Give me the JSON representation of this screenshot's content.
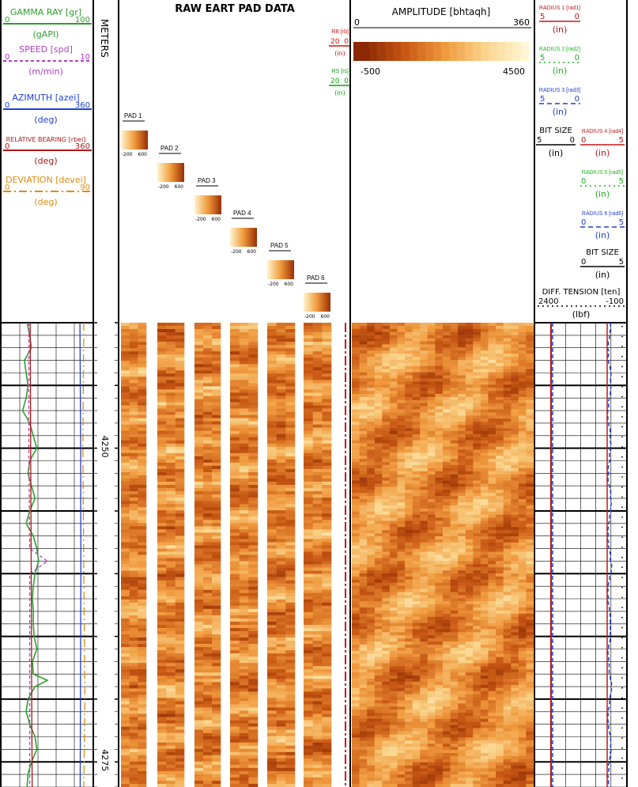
{
  "chart_data": {
    "type": "well-log",
    "title": "RAW EART PAD DATA",
    "depth": {
      "unit": "METERS",
      "range": [
        4240,
        4277
      ],
      "tick_labels": [
        "4250",
        "4275"
      ]
    },
    "left_track": {
      "curves": [
        {
          "key": "gr",
          "name": "GAMMA RAY [gr]",
          "unit": "(gAPI)",
          "min": "0",
          "max": "100",
          "color": "#2ca02c",
          "dash": "none",
          "samples": [
            [
              4240,
              27
            ],
            [
              4241,
              30
            ],
            [
              4242,
              32
            ],
            [
              4243,
              24
            ],
            [
              4244,
              26
            ],
            [
              4245,
              28
            ],
            [
              4246,
              26
            ],
            [
              4247,
              22
            ],
            [
              4248,
              30
            ],
            [
              4249,
              34
            ],
            [
              4250,
              38
            ],
            [
              4251,
              30
            ],
            [
              4252,
              28
            ],
            [
              4253,
              32
            ],
            [
              4254,
              36
            ],
            [
              4255,
              30
            ],
            [
              4256,
              26
            ],
            [
              4257,
              34
            ],
            [
              4258,
              38
            ],
            [
              4259,
              40
            ],
            [
              4260,
              36
            ],
            [
              4261,
              34
            ],
            [
              4262,
              33
            ],
            [
              4263,
              34
            ],
            [
              4264,
              34
            ],
            [
              4265,
              35
            ],
            [
              4266,
              38
            ],
            [
              4267,
              33
            ],
            [
              4268,
              34
            ],
            [
              4268.5,
              50
            ],
            [
              4269,
              36
            ],
            [
              4270,
              28
            ],
            [
              4271,
              26
            ],
            [
              4272,
              30
            ],
            [
              4273,
              36
            ],
            [
              4274,
              38
            ],
            [
              4275,
              32
            ],
            [
              4276,
              28
            ],
            [
              4277,
              27
            ]
          ]
        },
        {
          "key": "spd",
          "name": "SPEED [spd]",
          "unit": "(m/min)",
          "min": "0",
          "max": "10",
          "color": "#b040c0",
          "dash": "4,3",
          "samples": [
            [
              4240,
              2.9
            ],
            [
              4250,
              2.9
            ],
            [
              4258,
              3.0
            ],
            [
              4259,
              5.0
            ],
            [
              4259.5,
              4.0
            ],
            [
              4260,
              3.0
            ],
            [
              4277,
              3.0
            ]
          ]
        },
        {
          "key": "azei",
          "name": "AZIMUTH [azei]",
          "unit": "(deg)",
          "min": "0",
          "max": "360",
          "color": "#1f3fd0",
          "dash": "none",
          "samples": [
            [
              4240,
              312
            ],
            [
              4250,
              315
            ],
            [
              4260,
              316
            ],
            [
              4270,
              314
            ],
            [
              4277,
              313
            ]
          ]
        },
        {
          "key": "rbei",
          "name": "RELATIVE BEARING [rbei]",
          "unit": "(deg)",
          "min": "0",
          "max": "360",
          "color": "#b01818",
          "dash": "none",
          "samples": [
            [
              4240,
              110
            ],
            [
              4250,
              112
            ],
            [
              4260,
              114
            ],
            [
              4270,
              116
            ],
            [
              4277,
              118
            ]
          ]
        },
        {
          "key": "devei",
          "name": "DEVIATION [devei]",
          "unit": "(deg)",
          "min": "0",
          "max": "90",
          "color": "#e08a10",
          "dash": "10,4,2,4",
          "samples": [
            [
              4240,
              82
            ],
            [
              4250,
              81
            ],
            [
              4260,
              82
            ],
            [
              4270,
              83
            ],
            [
              4277,
              82
            ]
          ]
        }
      ]
    },
    "pads": [
      {
        "label": "PAD 1",
        "scale_min": "-200",
        "scale_max": "600"
      },
      {
        "label": "PAD 2",
        "scale_min": "-200",
        "scale_max": "600"
      },
      {
        "label": "PAD 3",
        "scale_min": "-200",
        "scale_max": "600"
      },
      {
        "label": "PAD 4",
        "scale_min": "-200",
        "scale_max": "600"
      },
      {
        "label": "PAD 5",
        "scale_min": "-200",
        "scale_max": "600"
      },
      {
        "label": "PAD 6",
        "scale_min": "-200",
        "scale_max": "600"
      }
    ],
    "mini_curves": [
      {
        "name": "RB [rb]",
        "unit": "(in)",
        "min": "20",
        "max": "0",
        "color": "#d01010"
      },
      {
        "name": "RS [rs]",
        "unit": "(in)",
        "min": "20",
        "max": "0",
        "color": "#10a010"
      }
    ],
    "amplitude": {
      "name": "AMPLITUDE [bhtaqh]",
      "azimuth_min": "0",
      "azimuth_max": "360",
      "scale_min": "-500",
      "scale_max": "4500"
    },
    "right_track": {
      "curves": [
        {
          "name": "RADIUS 1 [rad1]",
          "unit": "(in)",
          "min": "5",
          "max": "0",
          "color": "#c01818"
        },
        {
          "name": "RADIUS 2 [rad2]",
          "unit": "(in)",
          "min": "5",
          "max": "0",
          "color": "#20b020"
        },
        {
          "name": "RADIUS 3 [rad3]",
          "unit": "(in)",
          "min": "5",
          "max": "0",
          "color": "#1f3fd0"
        },
        {
          "name": "BIT SIZE",
          "unit": "(in)",
          "min": "5",
          "max": "0",
          "color": "#000000"
        },
        {
          "name": "RADIUS 4 [rad4]",
          "unit": "(in)",
          "min": "0",
          "max": "5",
          "color": "#c01818"
        },
        {
          "name": "RADIUS 5 [rad5]",
          "unit": "(in)",
          "min": "0",
          "max": "5",
          "color": "#20b020"
        },
        {
          "name": "RADIUS 6 [rad6]",
          "unit": "(in)",
          "min": "0",
          "max": "5",
          "color": "#1f3fd0"
        },
        {
          "name": "BIT SIZE",
          "unit": "(in)",
          "min": "0",
          "max": "5",
          "color": "#000000"
        },
        {
          "name": "DIFF. TENSION [ten]",
          "unit": "(lbf)",
          "min": "2400",
          "max": "-100",
          "color": "#000000"
        }
      ]
    }
  }
}
